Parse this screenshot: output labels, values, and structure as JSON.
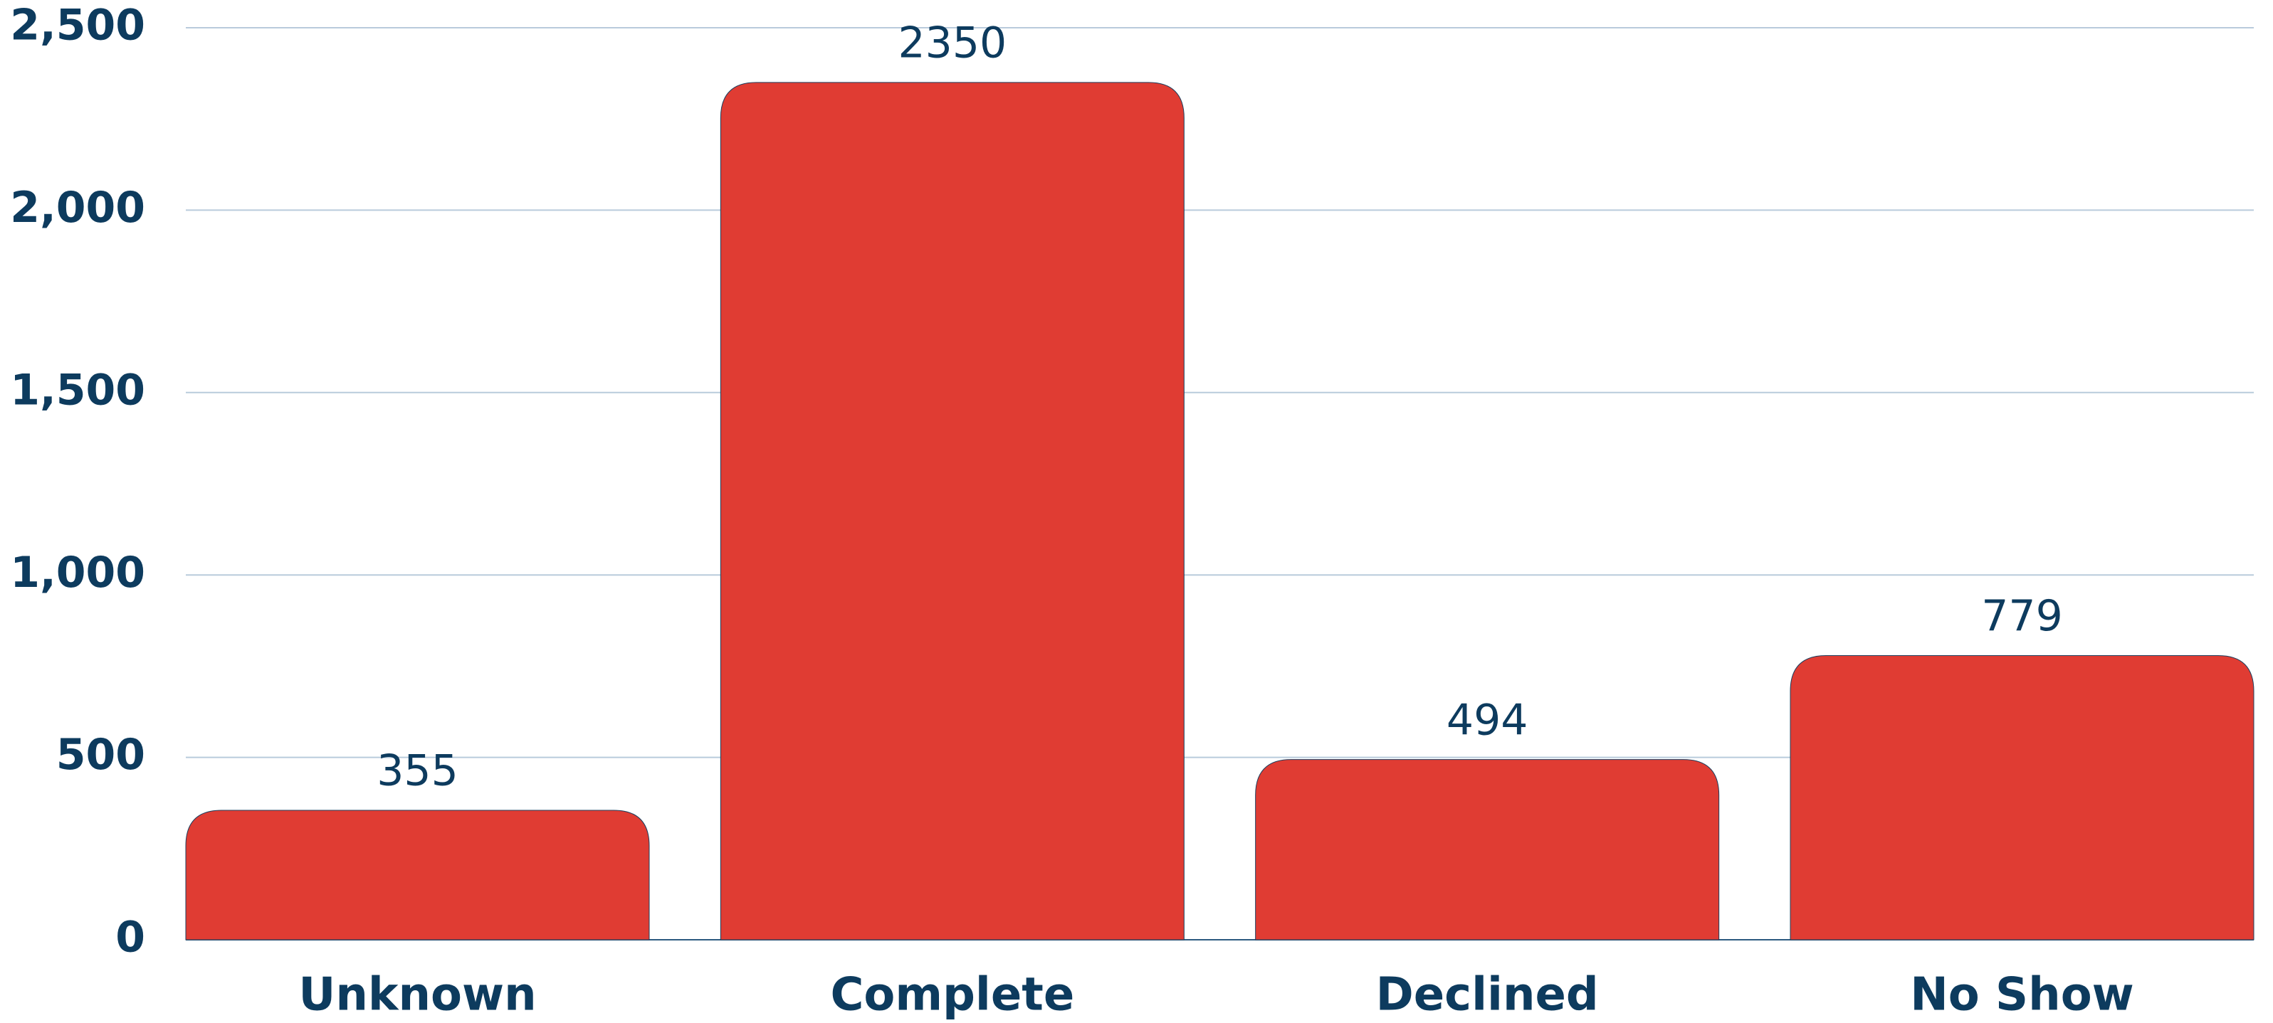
{
  "chart_data": {
    "type": "bar",
    "categories": [
      "Unknown",
      "Complete",
      "Declined",
      "No Show"
    ],
    "values": [
      355,
      2350,
      494,
      779
    ],
    "color": "#e03c33",
    "ylim": [
      0,
      2500
    ],
    "yticks": [
      0,
      500,
      {
        "value": 1000,
        "label": "1,000"
      },
      {
        "value": 1500,
        "label": "1,500"
      },
      {
        "value": 2000,
        "label": "2,000"
      },
      {
        "value": 2500,
        "label": "2,500"
      }
    ],
    "grid": true
  }
}
